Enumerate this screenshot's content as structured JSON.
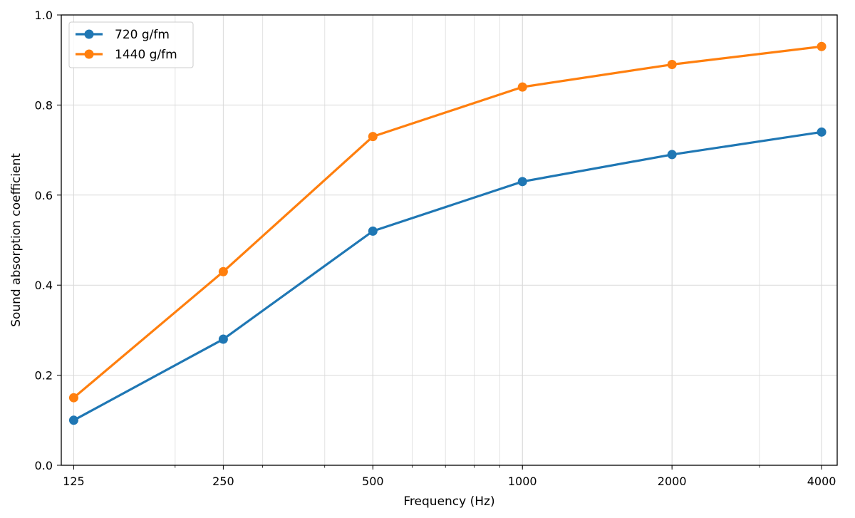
{
  "chart_data": {
    "type": "line",
    "title": "",
    "xlabel": "Frequency (Hz)",
    "ylabel": "Sound absorption coefficient",
    "x_scale": "log",
    "x": [
      125,
      250,
      500,
      1000,
      2000,
      4000
    ],
    "x_tick_labels": [
      "125",
      "250",
      "500",
      "1000",
      "2000",
      "4000"
    ],
    "xlim": [
      118,
      4300
    ],
    "ylim": [
      0,
      1
    ],
    "y_ticks": [
      0,
      0.2,
      0.4,
      0.6,
      0.8,
      1.0
    ],
    "y_tick_labels": [
      "0.0",
      "0.2",
      "0.4",
      "0.6",
      "0.8",
      "1.0"
    ],
    "grid": true,
    "legend_position": "top-left",
    "series": [
      {
        "name": "720 g/fm",
        "color": "#1f77b4",
        "values": [
          0.1,
          0.28,
          0.52,
          0.63,
          0.69,
          0.74
        ]
      },
      {
        "name": "1440 g/fm",
        "color": "#ff7f0e",
        "values": [
          0.15,
          0.43,
          0.73,
          0.84,
          0.89,
          0.93
        ]
      }
    ]
  }
}
